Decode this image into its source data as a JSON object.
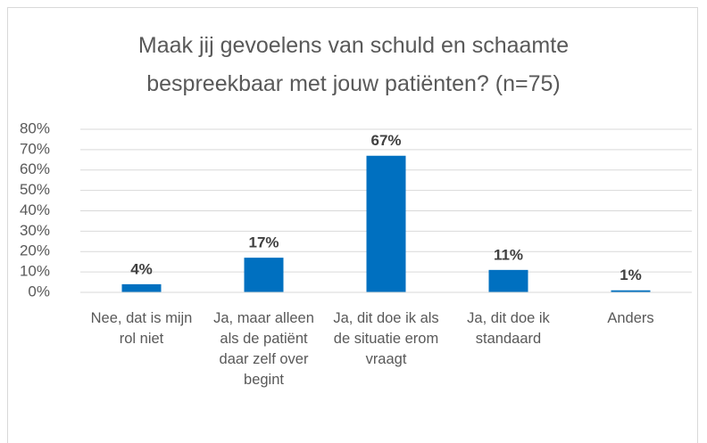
{
  "chart_data": {
    "type": "bar",
    "title": "Maak jij gevoelens van schuld en schaamte bespreekbaar met jouw patiënten? (n=75)",
    "categories": [
      "Nee, dat is mijn rol niet",
      "Ja, maar alleen als de patiënt daar zelf over begint",
      "Ja, dit doe ik als de situatie erom vraagt",
      "Ja, dit doe ik standaard",
      "Anders"
    ],
    "values": [
      4,
      17,
      67,
      11,
      1
    ],
    "value_labels": [
      "4%",
      "17%",
      "67%",
      "11%",
      "1%"
    ],
    "color": "#0070c0",
    "ylim": [
      0,
      80
    ],
    "yticks": [
      {
        "value": 0,
        "label": "0%"
      },
      {
        "value": 10,
        "label": "10%"
      },
      {
        "value": 20,
        "label": "20%"
      },
      {
        "value": 30,
        "label": "30%"
      },
      {
        "value": 40,
        "label": "40%"
      },
      {
        "value": 50,
        "label": "50%"
      },
      {
        "value": 60,
        "label": "60%"
      },
      {
        "value": 70,
        "label": "70%"
      },
      {
        "value": 80,
        "label": "80%"
      }
    ],
    "grid": true
  }
}
